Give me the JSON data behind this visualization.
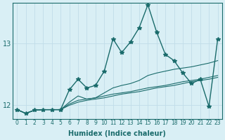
{
  "xlabel": "Humidex (Indice chaleur)",
  "ylabel": "",
  "bg_color": "#d9eff5",
  "line_color": "#1a6b6b",
  "grid_color": "#c0dde8",
  "x": [
    0,
    1,
    2,
    3,
    4,
    5,
    6,
    7,
    8,
    9,
    10,
    11,
    12,
    13,
    14,
    15,
    16,
    17,
    18,
    19,
    20,
    21,
    22,
    23
  ],
  "yticks": [
    12,
    13
  ],
  "ylim": [
    11.78,
    13.65
  ],
  "xlim": [
    -0.5,
    23.5
  ],
  "series": [
    [
      11.93,
      11.87,
      11.92,
      11.93,
      11.93,
      11.93,
      12.25,
      12.42,
      12.28,
      12.32,
      12.55,
      13.07,
      12.85,
      13.02,
      13.25,
      13.62,
      13.18,
      12.82,
      12.72,
      12.52,
      12.35,
      12.42,
      11.98,
      13.07
    ],
    [
      11.93,
      11.87,
      11.92,
      11.93,
      11.93,
      11.93,
      12.05,
      12.15,
      12.1,
      12.12,
      12.2,
      12.28,
      12.32,
      12.35,
      12.4,
      12.48,
      12.52,
      12.55,
      12.58,
      12.6,
      12.62,
      12.65,
      12.68,
      12.72
    ],
    [
      11.93,
      11.87,
      11.92,
      11.93,
      11.93,
      11.93,
      12.0,
      12.05,
      12.08,
      12.1,
      12.12,
      12.15,
      12.18,
      12.2,
      12.22,
      12.25,
      12.28,
      12.3,
      12.32,
      12.35,
      12.38,
      12.4,
      12.42,
      12.45
    ],
    [
      11.93,
      11.87,
      11.92,
      11.93,
      11.93,
      11.93,
      12.02,
      12.08,
      12.1,
      12.12,
      12.15,
      12.18,
      12.2,
      12.22,
      12.25,
      12.28,
      12.3,
      12.32,
      12.35,
      12.38,
      12.4,
      12.42,
      12.45,
      12.48
    ]
  ]
}
